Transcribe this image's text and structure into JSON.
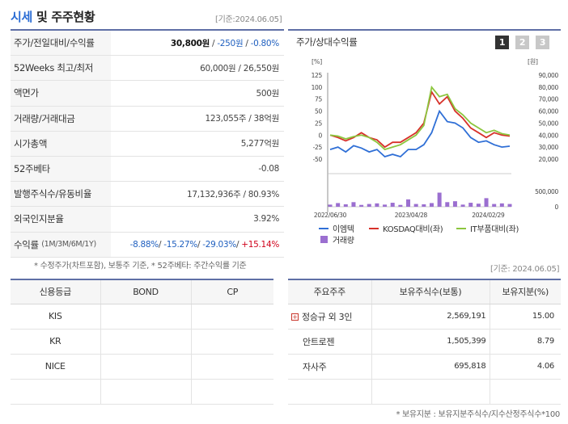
{
  "header": {
    "title_a": "시세",
    "title_b": " 및 주주현황",
    "basis": "[기준:2024.06.05]"
  },
  "summary": [
    {
      "label": "주가/전일대비/수익률",
      "price": "30,800원",
      "sep1": " / ",
      "change": "-250원",
      "sep2": " / ",
      "rate": "-0.80%"
    },
    {
      "label": "52Weeks 최고/최저",
      "value": "60,000원 / 26,550원"
    },
    {
      "label": "액면가",
      "value": "500원"
    },
    {
      "label": "거래량/거래대금",
      "value": "123,055주 / 38억원"
    },
    {
      "label": "시가총액",
      "value": "5,277억원"
    },
    {
      "label": "52주베타",
      "value": "-0.08"
    },
    {
      "label": "발행주식수/유동비율",
      "value": "17,132,936주 / 80.93%"
    },
    {
      "label": "외국인지분율",
      "value": "3.92%"
    },
    {
      "label": "수익률",
      "label_sub": "(1M/3M/6M/1Y)",
      "r1": "-8.88%",
      "r2": "-15.27%",
      "r3": "-29.03%",
      "r4": "+15.14%",
      "slash": "/ "
    }
  ],
  "summary_note": "* 수정주가(차트포함), 보통주 기준, * 52주베타: 주간수익률 기준",
  "chart_panel": {
    "title": "주가/상대수익률",
    "tabs": [
      "1",
      "2",
      "3"
    ],
    "legend": {
      "s1": "이엠텍",
      "s2": "KOSDAQ대비(좌)",
      "s3": "IT부품대비(좌)",
      "s4": "거래량"
    }
  },
  "chart_data": {
    "type": "line",
    "x_ticks": [
      "2022/06/30",
      "2023/04/28",
      "2024/02/29"
    ],
    "left_unit": "[%]",
    "right_unit": "[원]",
    "left_ticks": [
      "125",
      "100",
      "75",
      "50",
      "25",
      "0",
      "-25",
      "-50"
    ],
    "left_ylim": [
      -50,
      125
    ],
    "right_ticks": [
      "90,000",
      "80,000",
      "70,000",
      "60,000",
      "50,000",
      "40,000",
      "30,000",
      "20,000"
    ],
    "right_ylim": [
      20000,
      90000
    ],
    "volume_ticks": [
      "500,000",
      "0"
    ],
    "volume_ylim": [
      0,
      500000
    ],
    "n": 24,
    "series": [
      {
        "name": "이엠텍",
        "color": "#2f6fd6",
        "axis": "left",
        "values": [
          -30,
          -25,
          -35,
          -22,
          -27,
          -35,
          -30,
          -45,
          -40,
          -45,
          -30,
          -30,
          -20,
          5,
          50,
          28,
          25,
          15,
          -5,
          -15,
          -12,
          -20,
          -25,
          -23
        ]
      },
      {
        "name": "KOSDAQ대비(좌)",
        "color": "#d7312a",
        "axis": "left",
        "values": [
          0,
          -5,
          -12,
          -5,
          5,
          -5,
          -10,
          -25,
          -15,
          -15,
          -5,
          5,
          25,
          90,
          65,
          80,
          50,
          35,
          15,
          5,
          -5,
          5,
          0,
          -2
        ]
      },
      {
        "name": "IT부품대비(좌)",
        "color": "#8cc63e",
        "axis": "left",
        "values": [
          0,
          -2,
          -8,
          -3,
          0,
          -5,
          -15,
          -30,
          -25,
          -20,
          -10,
          0,
          20,
          100,
          80,
          85,
          55,
          42,
          25,
          15,
          5,
          10,
          3,
          0
        ]
      },
      {
        "name": "거래량",
        "color": "#9b6fd0",
        "axis": "volume",
        "values": [
          70000,
          120000,
          80000,
          150000,
          60000,
          90000,
          110000,
          70000,
          130000,
          60000,
          240000,
          90000,
          80000,
          120000,
          460000,
          150000,
          180000,
          70000,
          130000,
          100000,
          280000,
          90000,
          110000,
          90000
        ]
      }
    ]
  },
  "chart_note": "[기준: 2024.06.05]",
  "credit": {
    "headers": [
      "신용등급",
      "BOND",
      "CP"
    ],
    "rows": [
      [
        "KIS",
        "",
        ""
      ],
      [
        "KR",
        "",
        ""
      ],
      [
        "NICE",
        "",
        ""
      ],
      [
        "",
        "",
        ""
      ]
    ]
  },
  "holders": {
    "headers": [
      "주요주주",
      "보유주식수(보통)",
      "보유지분(%)"
    ],
    "rows": [
      {
        "name": "정승규 외 3인",
        "shares": "2,569,191",
        "ratio": "15.00",
        "expand": "+"
      },
      {
        "name": "안트로젠",
        "shares": "1,505,399",
        "ratio": "8.79"
      },
      {
        "name": "자사주",
        "shares": "695,818",
        "ratio": "4.06"
      },
      {
        "name": "",
        "shares": "",
        "ratio": ""
      }
    ],
    "note": "* 보유지분 : 보유지분주식수/지수산정주식수*100"
  }
}
